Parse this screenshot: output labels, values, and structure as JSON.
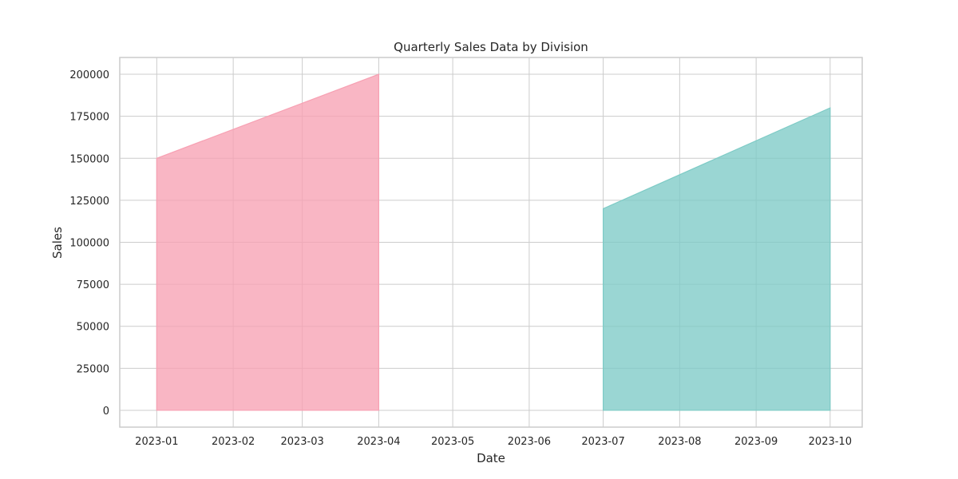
{
  "chart_data": {
    "type": "area",
    "title": "Quarterly Sales Data by Division",
    "xlabel": "Date",
    "ylabel": "Sales",
    "x_ticks": [
      "2023-01",
      "2023-02",
      "2023-03",
      "2023-04",
      "2023-05",
      "2023-06",
      "2023-07",
      "2023-08",
      "2023-09",
      "2023-10"
    ],
    "y_ticks": [
      0,
      25000,
      50000,
      75000,
      100000,
      125000,
      150000,
      175000,
      200000
    ],
    "xlim": [
      "2022-12-17",
      "2023-10-14"
    ],
    "ylim": [
      -10000,
      210000
    ],
    "grid": true,
    "legend": "none",
    "series": [
      {
        "color": "#f7a1b3",
        "points": [
          {
            "x": "2023-01-01",
            "y": 150000
          },
          {
            "x": "2023-04-01",
            "y": 200000
          }
        ]
      },
      {
        "color": "#7ecbc6",
        "points": [
          {
            "x": "2023-07-01",
            "y": 120000
          },
          {
            "x": "2023-10-01",
            "y": 180000
          }
        ]
      }
    ]
  }
}
